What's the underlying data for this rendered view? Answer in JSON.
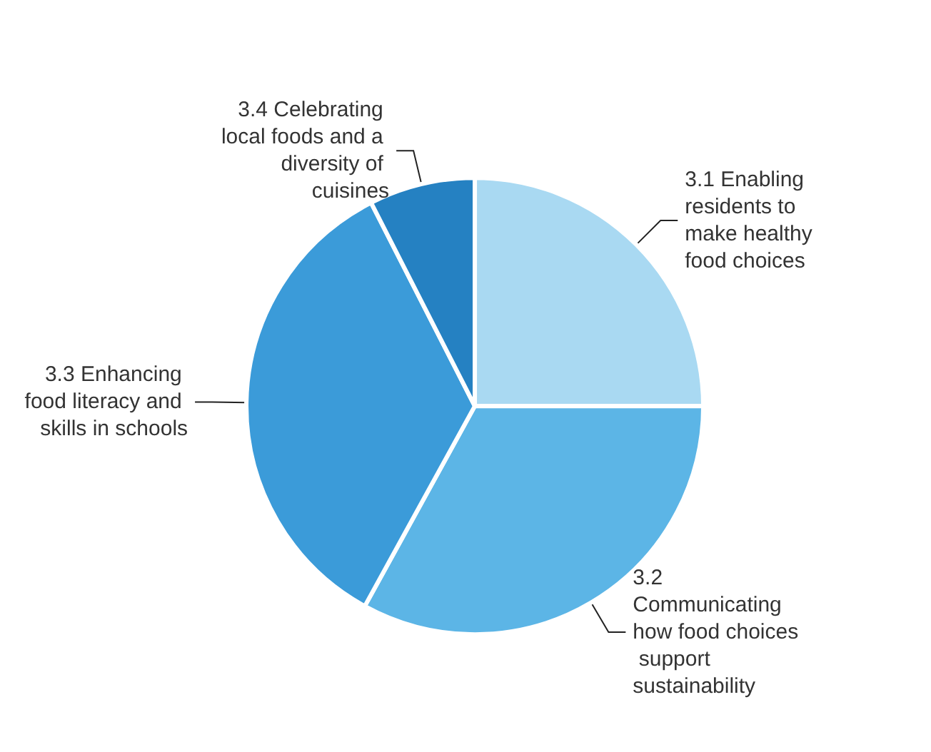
{
  "chart_data": {
    "type": "pie",
    "categories": [
      "3.1 Enabling residents to make healthy food choices",
      "3.2 Communicating how food choices support sustainability",
      "3.3 Enhancing food literacy and skills in schools",
      "3.4 Celebrating local foods and a diversity of cuisines"
    ],
    "values": [
      25,
      33,
      34.5,
      7.5
    ],
    "colors": [
      "#a9d9f2",
      "#5cb5e6",
      "#3b9bd9",
      "#2581c2"
    ],
    "legend": false
  }
}
